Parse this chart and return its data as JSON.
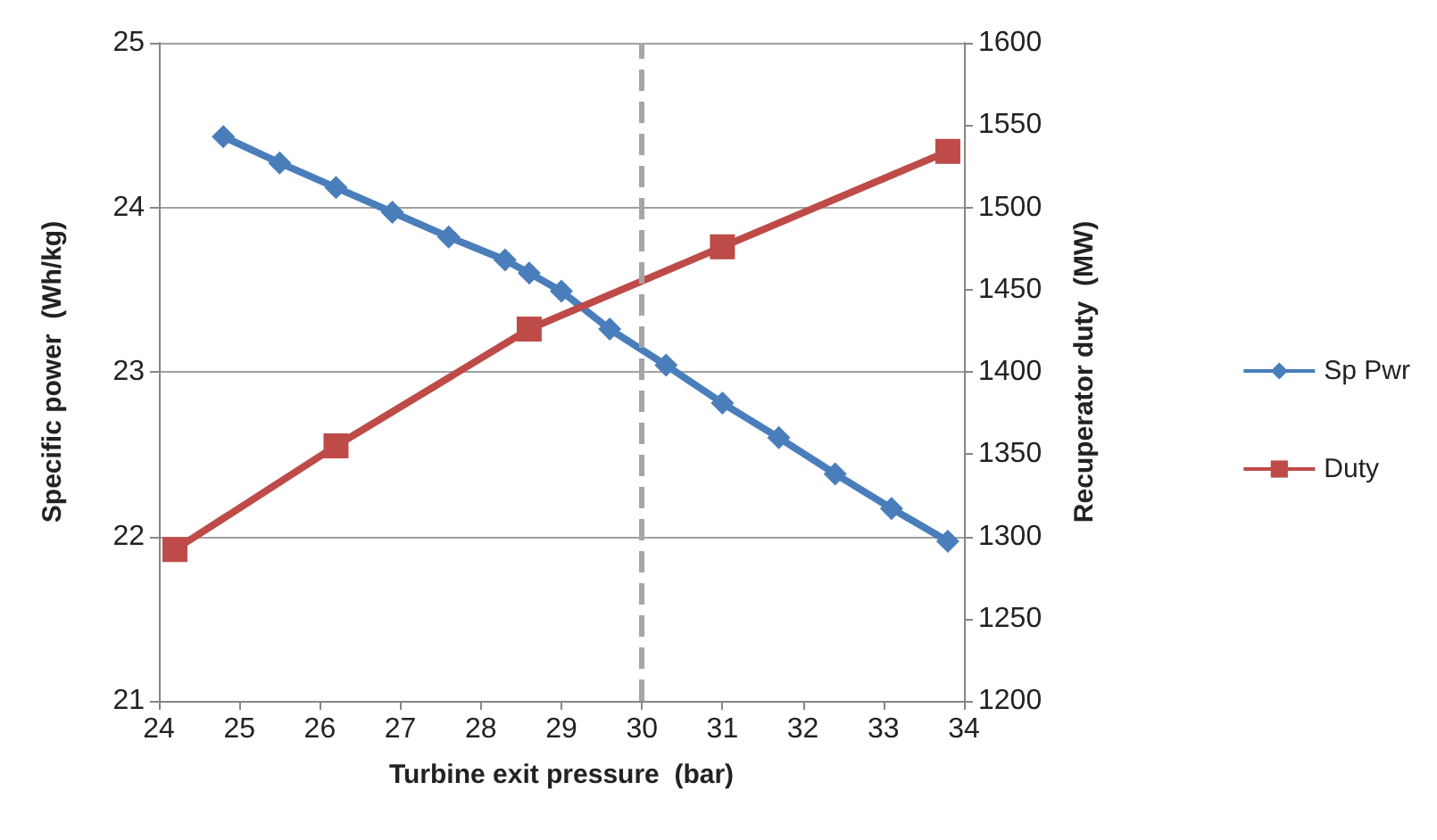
{
  "chart_data": {
    "type": "line",
    "xlabel": "Turbine exit pressure  (bar)",
    "ylabel": "Specific power  (Wh/kg)",
    "y2label": "Recuperator duty  (MW)",
    "xlim": [
      24,
      34
    ],
    "xticks": [
      24,
      25,
      26,
      27,
      28,
      29,
      30,
      31,
      32,
      33,
      34
    ],
    "ylim": [
      21,
      25
    ],
    "yticks": [
      21,
      22,
      23,
      24,
      25
    ],
    "y2lim": [
      1200,
      1600
    ],
    "y2ticks": [
      1200,
      1250,
      1300,
      1350,
      1400,
      1450,
      1500,
      1550,
      1600
    ],
    "grid": "y",
    "legend": "right",
    "series": [
      {
        "name": "Sp Pwr",
        "color": "#4a7ebb",
        "marker": "diamond",
        "x": [
          24.8,
          25.5,
          26.2,
          26.9,
          27.6,
          28.3,
          28.6,
          29.0,
          29.6,
          30.3,
          31.0,
          31.7,
          32.4,
          33.1,
          33.8
        ],
        "values": [
          24.43,
          24.27,
          24.12,
          23.97,
          23.82,
          23.68,
          23.6,
          23.49,
          23.26,
          23.04,
          22.81,
          22.6,
          22.38,
          22.17,
          21.97
        ]
      },
      {
        "name": "Duty",
        "color": "#be4b48",
        "marker": "square",
        "axis": "y2",
        "x": [
          24.2,
          26.2,
          28.6,
          31.0,
          33.8
        ],
        "values": [
          1292,
          1355,
          1426,
          1476,
          1534
        ]
      }
    ],
    "ref_lines": [
      {
        "axis": "x",
        "value": 30,
        "color": "#a6a6a6",
        "line_style": "dashed"
      }
    ]
  }
}
